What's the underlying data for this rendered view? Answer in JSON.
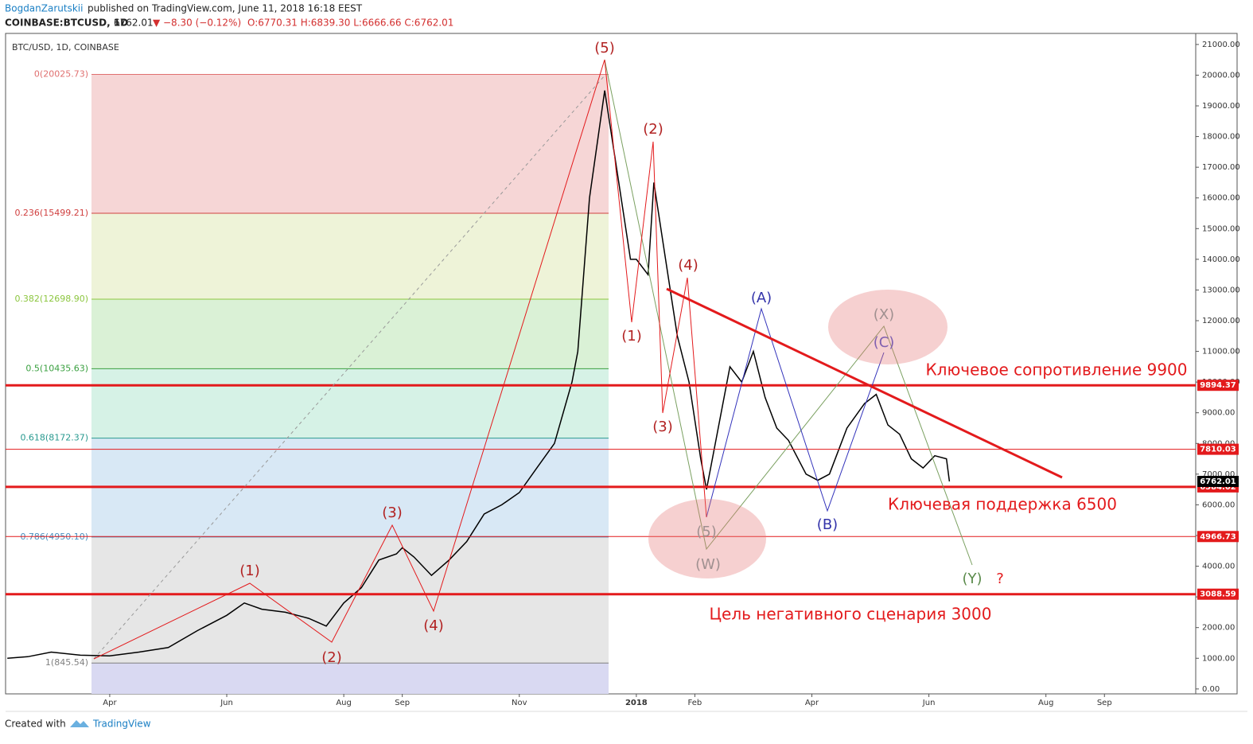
{
  "header": {
    "author": "BogdanZarutskii",
    "published": "published on TradingView.com, June 11, 2018 16:18 EEST",
    "symbol": "COINBASE:BTCUSD, 1D",
    "last": "6762.01",
    "arrow": "▼",
    "change": "−8.30 (−0.12%)",
    "ohlc": "O:6770.31 H:6839.30 L:6666.66 C:6762.01"
  },
  "footer": {
    "created": "Created with",
    "brand": "TradingView"
  },
  "chart_data": {
    "type": "line",
    "legend": "BTC/USD, 1D, COINBASE",
    "color": "#000000",
    "x": [
      1.25,
      1.6,
      2.0,
      2.5,
      3.0,
      3.5,
      4.0,
      4.5,
      5.0,
      5.3,
      5.6,
      6.0,
      6.4,
      6.7,
      7.0,
      7.3,
      7.6,
      7.9,
      8.0,
      8.2,
      8.5,
      8.8,
      9.1,
      9.4,
      9.7,
      10.0,
      10.3,
      10.6,
      10.9,
      11.0,
      11.2,
      11.46,
      11.7,
      11.9,
      12.0,
      12.2,
      12.3,
      12.5,
      12.7,
      12.9,
      13.1,
      13.2,
      13.4,
      13.6,
      13.8,
      14.0,
      14.2,
      14.4,
      14.6,
      14.9,
      15.1,
      15.3,
      15.6,
      15.9,
      16.1,
      16.3,
      16.5,
      16.7,
      16.9,
      17.1,
      17.3,
      17.35
    ],
    "values": [
      1000,
      1050,
      1200,
      1100,
      1080,
      1200,
      1350,
      1900,
      2400,
      2800,
      2600,
      2500,
      2300,
      2050,
      2800,
      3300,
      4200,
      4400,
      4600,
      4300,
      3700,
      4200,
      4800,
      5700,
      6000,
      6400,
      7200,
      8000,
      10000,
      11000,
      16000,
      19500,
      16500,
      14000,
      14000,
      13500,
      16500,
      14000,
      11500,
      10000,
      7500,
      6500,
      8500,
      10500,
      10000,
      11000,
      9500,
      8500,
      8100,
      7000,
      6800,
      7000,
      8500,
      9300,
      9600,
      8600,
      8300,
      7500,
      7200,
      7600,
      7500,
      6762
    ],
    "xlim": [
      1.22,
      21.56
    ],
    "xticks": [
      {
        "value": 3,
        "label": "Apr"
      },
      {
        "value": 5,
        "label": "Jun"
      },
      {
        "value": 7,
        "label": "Aug"
      },
      {
        "value": 8,
        "label": "Sep"
      },
      {
        "value": 10,
        "label": "Nov"
      },
      {
        "value": 12,
        "label": "2018"
      },
      {
        "value": 13,
        "label": "Feb"
      },
      {
        "value": 15,
        "label": "Apr"
      },
      {
        "value": 17,
        "label": "Jun"
      },
      {
        "value": 19,
        "label": "Aug"
      },
      {
        "value": 20,
        "label": "Sep"
      }
    ],
    "ylim": [
      -160,
      21360
    ],
    "yticks": [
      {
        "value": 0,
        "label": "0.00"
      },
      {
        "value": 1000,
        "label": "1000.00"
      },
      {
        "value": 2000,
        "label": "2000.00"
      },
      {
        "value": 3000,
        "label": "3000.00"
      },
      {
        "value": 4000,
        "label": "4000.00"
      },
      {
        "value": 5000,
        "label": "5000.00"
      },
      {
        "value": 6000,
        "label": "6000.00"
      },
      {
        "value": 7000,
        "label": "7000.00"
      },
      {
        "value": 8000,
        "label": "8000.00"
      },
      {
        "value": 9000,
        "label": "9000.00"
      },
      {
        "value": 10000,
        "label": "10000.00"
      },
      {
        "value": 11000,
        "label": "11000.00"
      },
      {
        "value": 12000,
        "label": "12000.00"
      },
      {
        "value": 13000,
        "label": "13000.00"
      },
      {
        "value": 14000,
        "label": "14000.00"
      },
      {
        "value": 15000,
        "label": "15000.00"
      },
      {
        "value": 16000,
        "label": "16000.00"
      },
      {
        "value": 17000,
        "label": "17000.00"
      },
      {
        "value": 18000,
        "label": "18000.00"
      },
      {
        "value": 19000,
        "label": "19000.00"
      },
      {
        "value": 20000,
        "label": "20000.00"
      },
      {
        "value": 21000,
        "label": "21000.00"
      }
    ],
    "fib": [
      {
        "label": "0(20025.73)",
        "value": 20025.73,
        "color": "#e07070",
        "fill": "#f6d6d6"
      },
      {
        "label": "0.236(15499.21)",
        "value": 15499.21,
        "color": "#d04040",
        "fill": "#eef3d8"
      },
      {
        "label": "0.382(12698.90)",
        "value": 12698.9,
        "color": "#8cc63f",
        "fill": "#daf1d6"
      },
      {
        "label": "0.5(10435.63)",
        "value": 10435.63,
        "color": "#3aa040",
        "fill": "#d6f2e6"
      },
      {
        "label": "0.618(8172.37)",
        "value": 8172.37,
        "color": "#2a9a90",
        "fill": "#d8e8f5"
      },
      {
        "label": "0.786(4950.10)",
        "value": 4950.1,
        "color": "#4a90c0",
        "fill": "#e6e6e6"
      },
      {
        "label": "1(845.54)",
        "value": 845.54,
        "color": "#808080",
        "fill": "#d9d9f2"
      }
    ],
    "levels": [
      {
        "value": 9894.37,
        "color": "#e31a1c",
        "style": "thick"
      },
      {
        "value": 7810.03,
        "color": "#e31a1c",
        "style": "thin"
      },
      {
        "value": 6584.02,
        "color": "#e31a1c",
        "style": "thick"
      },
      {
        "value": 4966.73,
        "color": "#e31a1c",
        "style": "thin"
      },
      {
        "value": 3088.59,
        "color": "#e31a1c",
        "style": "thick"
      }
    ],
    "last_price": {
      "value": 6762.01,
      "color": "#000000"
    },
    "annotations": [
      "(5)",
      "(2)",
      "(4)",
      "(1)",
      "(3)",
      "(1)",
      "(3)",
      "(2)",
      "(4)",
      "(A)",
      "(X)",
      "(C)",
      "(5)",
      "(W)",
      "(B)",
      "(Y)",
      "?",
      "Ключевое сопротивление 9900",
      "Ключевая поддержка 6500",
      "Цель негативного сценария 3000"
    ]
  }
}
